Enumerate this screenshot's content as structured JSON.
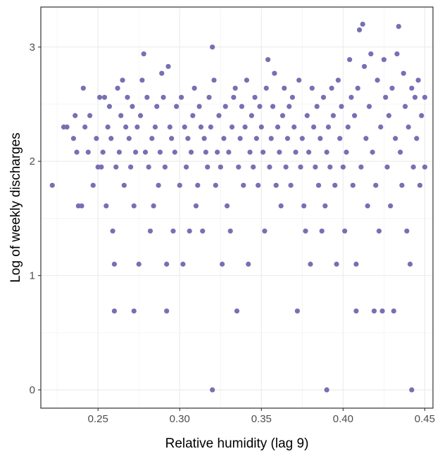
{
  "chart_data": {
    "type": "scatter",
    "title": "",
    "xlabel": "Relative humidity (lag 9)",
    "ylabel": "Log of weekly discharges",
    "xlim": [
      0.215,
      0.455
    ],
    "ylim": [
      -0.16,
      3.35
    ],
    "x_ticks": [
      0.25,
      0.3,
      0.35,
      0.4,
      0.45
    ],
    "x_tick_labels": [
      "0.25",
      "0.30",
      "0.35",
      "0.40",
      "0.45"
    ],
    "y_ticks": [
      0,
      1,
      2,
      3
    ],
    "y_tick_labels": [
      "0",
      "1",
      "2",
      "3"
    ],
    "grid": true,
    "legend": "none",
    "point_color": "#7670b3",
    "series": [
      {
        "points": [
          [
            0.222,
            1.79
          ],
          [
            0.229,
            2.3
          ],
          [
            0.231,
            2.3
          ],
          [
            0.235,
            2.2
          ],
          [
            0.236,
            2.4
          ],
          [
            0.237,
            2.08
          ],
          [
            0.238,
            1.61
          ],
          [
            0.24,
            1.61
          ],
          [
            0.241,
            2.64
          ],
          [
            0.242,
            2.3
          ],
          [
            0.244,
            2.08
          ],
          [
            0.245,
            2.4
          ],
          [
            0.247,
            1.79
          ],
          [
            0.249,
            2.2
          ],
          [
            0.25,
            1.95
          ],
          [
            0.251,
            2.56
          ],
          [
            0.252,
            1.95
          ],
          [
            0.253,
            2.08
          ],
          [
            0.254,
            2.56
          ],
          [
            0.255,
            1.61
          ],
          [
            0.256,
            2.3
          ],
          [
            0.257,
            2.48
          ],
          [
            0.258,
            2.2
          ],
          [
            0.259,
            1.39
          ],
          [
            0.26,
            1.1
          ],
          [
            0.26,
            0.69
          ],
          [
            0.261,
            1.95
          ],
          [
            0.262,
            2.64
          ],
          [
            0.263,
            2.08
          ],
          [
            0.264,
            2.4
          ],
          [
            0.265,
            2.71
          ],
          [
            0.266,
            1.79
          ],
          [
            0.267,
            2.3
          ],
          [
            0.268,
            2.56
          ],
          [
            0.269,
            2.2
          ],
          [
            0.27,
            1.95
          ],
          [
            0.271,
            2.48
          ],
          [
            0.272,
            1.61
          ],
          [
            0.272,
            0.69
          ],
          [
            0.273,
            2.08
          ],
          [
            0.274,
            2.3
          ],
          [
            0.275,
            1.1
          ],
          [
            0.276,
            2.4
          ],
          [
            0.277,
            2.71
          ],
          [
            0.278,
            2.94
          ],
          [
            0.279,
            2.08
          ],
          [
            0.28,
            2.56
          ],
          [
            0.281,
            1.95
          ],
          [
            0.282,
            1.39
          ],
          [
            0.283,
            2.2
          ],
          [
            0.284,
            1.61
          ],
          [
            0.285,
            2.3
          ],
          [
            0.286,
            2.48
          ],
          [
            0.287,
            1.79
          ],
          [
            0.288,
            2.08
          ],
          [
            0.289,
            2.77
          ],
          [
            0.29,
            2.56
          ],
          [
            0.291,
            1.95
          ],
          [
            0.292,
            0.69
          ],
          [
            0.292,
            1.1
          ],
          [
            0.293,
            2.83
          ],
          [
            0.294,
            2.3
          ],
          [
            0.295,
            2.2
          ],
          [
            0.296,
            1.39
          ],
          [
            0.297,
            2.08
          ],
          [
            0.298,
            2.48
          ],
          [
            0.3,
            1.79
          ],
          [
            0.301,
            2.56
          ],
          [
            0.302,
            1.1
          ],
          [
            0.303,
            2.3
          ],
          [
            0.304,
            1.95
          ],
          [
            0.305,
            2.2
          ],
          [
            0.306,
            1.39
          ],
          [
            0.307,
            2.08
          ],
          [
            0.308,
            2.4
          ],
          [
            0.309,
            2.64
          ],
          [
            0.31,
            1.61
          ],
          [
            0.311,
            1.79
          ],
          [
            0.312,
            2.48
          ],
          [
            0.313,
            2.3
          ],
          [
            0.314,
            1.39
          ],
          [
            0.315,
            2.2
          ],
          [
            0.316,
            2.08
          ],
          [
            0.317,
            1.95
          ],
          [
            0.318,
            2.56
          ],
          [
            0.319,
            2.3
          ],
          [
            0.32,
            3.0
          ],
          [
            0.32,
            0.0
          ],
          [
            0.321,
            2.71
          ],
          [
            0.322,
            1.79
          ],
          [
            0.323,
            2.08
          ],
          [
            0.324,
            2.4
          ],
          [
            0.325,
            1.95
          ],
          [
            0.326,
            1.1
          ],
          [
            0.327,
            2.2
          ],
          [
            0.328,
            2.48
          ],
          [
            0.329,
            1.61
          ],
          [
            0.33,
            2.08
          ],
          [
            0.331,
            1.39
          ],
          [
            0.332,
            2.3
          ],
          [
            0.333,
            2.56
          ],
          [
            0.334,
            2.64
          ],
          [
            0.335,
            0.69
          ],
          [
            0.336,
            1.95
          ],
          [
            0.337,
            2.2
          ],
          [
            0.338,
            2.48
          ],
          [
            0.339,
            1.79
          ],
          [
            0.34,
            2.3
          ],
          [
            0.341,
            2.71
          ],
          [
            0.342,
            1.1
          ],
          [
            0.343,
            2.08
          ],
          [
            0.344,
            2.4
          ],
          [
            0.345,
            1.95
          ],
          [
            0.346,
            2.56
          ],
          [
            0.347,
            2.2
          ],
          [
            0.348,
            1.79
          ],
          [
            0.349,
            2.48
          ],
          [
            0.35,
            2.3
          ],
          [
            0.351,
            2.08
          ],
          [
            0.352,
            1.39
          ],
          [
            0.353,
            2.64
          ],
          [
            0.354,
            2.89
          ],
          [
            0.355,
            1.95
          ],
          [
            0.356,
            2.2
          ],
          [
            0.357,
            2.48
          ],
          [
            0.358,
            2.77
          ],
          [
            0.359,
            1.79
          ],
          [
            0.36,
            2.3
          ],
          [
            0.361,
            2.08
          ],
          [
            0.362,
            1.61
          ],
          [
            0.363,
            2.4
          ],
          [
            0.364,
            2.64
          ],
          [
            0.365,
            1.95
          ],
          [
            0.366,
            2.2
          ],
          [
            0.367,
            2.48
          ],
          [
            0.368,
            1.79
          ],
          [
            0.369,
            2.56
          ],
          [
            0.37,
            2.3
          ],
          [
            0.371,
            2.08
          ],
          [
            0.372,
            0.69
          ],
          [
            0.373,
            2.71
          ],
          [
            0.374,
            1.95
          ],
          [
            0.375,
            2.2
          ],
          [
            0.376,
            1.61
          ],
          [
            0.377,
            1.39
          ],
          [
            0.378,
            2.4
          ],
          [
            0.379,
            2.08
          ],
          [
            0.38,
            1.1
          ],
          [
            0.381,
            2.64
          ],
          [
            0.382,
            2.3
          ],
          [
            0.383,
            1.95
          ],
          [
            0.384,
            2.48
          ],
          [
            0.385,
            1.79
          ],
          [
            0.386,
            2.2
          ],
          [
            0.387,
            1.39
          ],
          [
            0.388,
            2.56
          ],
          [
            0.389,
            1.61
          ],
          [
            0.39,
            0.0
          ],
          [
            0.39,
            2.08
          ],
          [
            0.391,
            2.3
          ],
          [
            0.392,
            1.95
          ],
          [
            0.393,
            2.64
          ],
          [
            0.394,
            2.4
          ],
          [
            0.395,
            1.79
          ],
          [
            0.396,
            1.1
          ],
          [
            0.397,
            2.71
          ],
          [
            0.398,
            2.2
          ],
          [
            0.399,
            2.48
          ],
          [
            0.4,
            1.95
          ],
          [
            0.401,
            1.39
          ],
          [
            0.402,
            2.08
          ],
          [
            0.403,
            2.3
          ],
          [
            0.404,
            2.89
          ],
          [
            0.405,
            2.56
          ],
          [
            0.406,
            1.79
          ],
          [
            0.407,
            2.4
          ],
          [
            0.408,
            0.69
          ],
          [
            0.408,
            1.1
          ],
          [
            0.409,
            2.64
          ],
          [
            0.41,
            3.15
          ],
          [
            0.411,
            1.95
          ],
          [
            0.412,
            3.2
          ],
          [
            0.413,
            2.83
          ],
          [
            0.414,
            2.2
          ],
          [
            0.415,
            1.61
          ],
          [
            0.416,
            2.48
          ],
          [
            0.417,
            2.94
          ],
          [
            0.418,
            2.08
          ],
          [
            0.419,
            0.69
          ],
          [
            0.42,
            1.79
          ],
          [
            0.421,
            2.71
          ],
          [
            0.422,
            1.39
          ],
          [
            0.423,
            2.3
          ],
          [
            0.424,
            0.69
          ],
          [
            0.425,
            2.89
          ],
          [
            0.426,
            2.56
          ],
          [
            0.427,
            1.95
          ],
          [
            0.428,
            2.4
          ],
          [
            0.429,
            1.61
          ],
          [
            0.43,
            2.64
          ],
          [
            0.431,
            0.69
          ],
          [
            0.432,
            2.2
          ],
          [
            0.433,
            2.94
          ],
          [
            0.434,
            3.18
          ],
          [
            0.435,
            2.08
          ],
          [
            0.436,
            1.79
          ],
          [
            0.437,
            2.77
          ],
          [
            0.438,
            2.48
          ],
          [
            0.439,
            1.39
          ],
          [
            0.44,
            2.3
          ],
          [
            0.441,
            1.1
          ],
          [
            0.442,
            0.0
          ],
          [
            0.442,
            2.64
          ],
          [
            0.443,
            1.95
          ],
          [
            0.444,
            2.56
          ],
          [
            0.445,
            2.2
          ],
          [
            0.446,
            2.71
          ],
          [
            0.447,
            1.79
          ],
          [
            0.448,
            2.4
          ],
          [
            0.45,
            2.56
          ],
          [
            0.45,
            1.95
          ]
        ]
      }
    ]
  }
}
